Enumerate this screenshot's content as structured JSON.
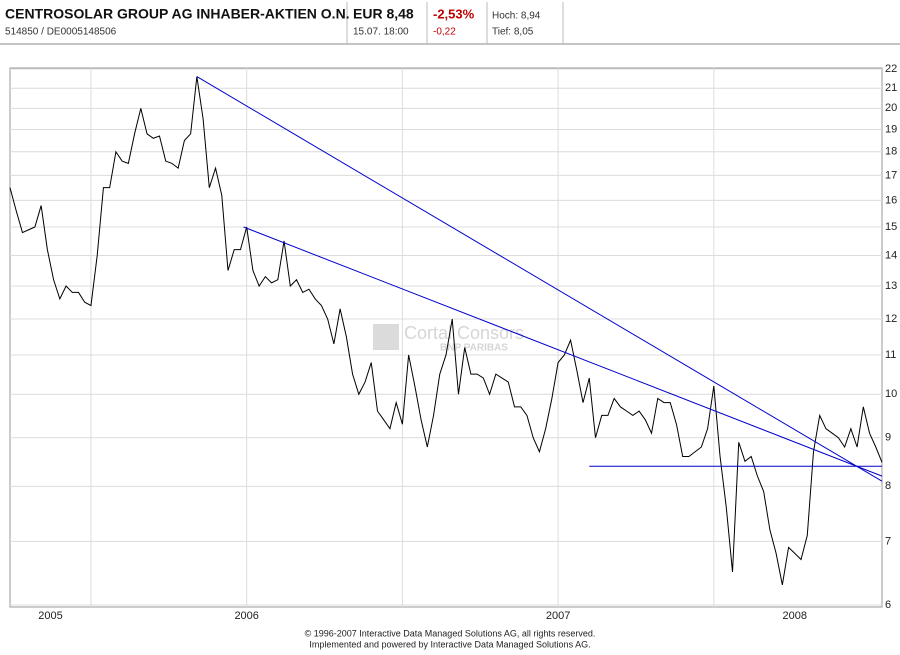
{
  "header": {
    "name": "CENTROSOLAR GROUP AG INHABER-AKTIEN O.N.",
    "ids": "514850  /  DE0005148506",
    "price": "EUR 8,48",
    "time": "15.07. 18:00",
    "change_pct": "-2,53%",
    "change_abs": "-0,22",
    "high": "Hoch: 8,94",
    "low": "Tief: 8,05"
  },
  "watermark": [
    "Cortal Consors",
    "BNP PARIBAS"
  ],
  "footer": [
    "© 1996-2007 Interactive Data Managed Solutions AG, all rights reserved.",
    "Implemented and powered by Interactive Data Managed Solutions AG."
  ],
  "chart_data": {
    "type": "line",
    "log_y": true,
    "grid": true,
    "xlim": [
      2005.74,
      2008.54
    ],
    "ylim": [
      6,
      22
    ],
    "yticks": [
      6,
      7,
      8,
      9,
      10,
      11,
      12,
      13,
      14,
      15,
      16,
      17,
      18,
      19,
      20,
      21,
      22
    ],
    "xticks": [
      {
        "value": 2005.87,
        "label": "2005"
      },
      {
        "value": 2006.5,
        "label": "2006"
      },
      {
        "value": 2007.5,
        "label": "2007"
      },
      {
        "value": 2008.26,
        "label": "2008"
      }
    ],
    "x_gridlines": [
      2006,
      2006.5,
      2007,
      2007.5,
      2008
    ],
    "x": [
      2005.74,
      2005.76,
      2005.78,
      2005.8,
      2005.82,
      2005.84,
      2005.86,
      2005.88,
      2005.9,
      2005.92,
      2005.94,
      2005.96,
      2005.98,
      2006,
      2006.02,
      2006.04,
      2006.06,
      2006.08,
      2006.1,
      2006.12,
      2006.14,
      2006.16,
      2006.18,
      2006.2,
      2006.22,
      2006.24,
      2006.26,
      2006.28,
      2006.3,
      2006.32,
      2006.34,
      2006.36,
      2006.38,
      2006.4,
      2006.42,
      2006.44,
      2006.46,
      2006.48,
      2006.5,
      2006.52,
      2006.54,
      2006.56,
      2006.58,
      2006.6,
      2006.62,
      2006.64,
      2006.66,
      2006.68,
      2006.7,
      2006.72,
      2006.74,
      2006.76,
      2006.78,
      2006.8,
      2006.82,
      2006.84,
      2006.86,
      2006.88,
      2006.9,
      2006.92,
      2006.94,
      2006.96,
      2006.98,
      2007,
      2007.02,
      2007.04,
      2007.06,
      2007.08,
      2007.1,
      2007.12,
      2007.14,
      2007.16,
      2007.18,
      2007.2,
      2007.22,
      2007.24,
      2007.26,
      2007.28,
      2007.3,
      2007.32,
      2007.34,
      2007.36,
      2007.38,
      2007.4,
      2007.42,
      2007.44,
      2007.46,
      2007.48,
      2007.5,
      2007.52,
      2007.54,
      2007.56,
      2007.58,
      2007.6,
      2007.62,
      2007.64,
      2007.66,
      2007.68,
      2007.7,
      2007.72,
      2007.74,
      2007.76,
      2007.78,
      2007.8,
      2007.82,
      2007.84,
      2007.86,
      2007.88,
      2007.9,
      2007.92,
      2007.94,
      2007.96,
      2007.98,
      2008,
      2008.02,
      2008.04,
      2008.06,
      2008.08,
      2008.1,
      2008.12,
      2008.14,
      2008.16,
      2008.18,
      2008.2,
      2008.22,
      2008.24,
      2008.26,
      2008.28,
      2008.3,
      2008.32,
      2008.34,
      2008.36,
      2008.38,
      2008.4,
      2008.42,
      2008.44,
      2008.46,
      2008.48,
      2008.5,
      2008.52,
      2008.54
    ],
    "series": [
      {
        "color": "#000000",
        "values": [
          16.5,
          15.6,
          14.8,
          14.9,
          15.0,
          15.8,
          14.2,
          13.2,
          12.6,
          13.0,
          12.8,
          12.8,
          12.5,
          12.4,
          14.0,
          16.5,
          16.5,
          18.0,
          17.6,
          17.5,
          18.8,
          20.0,
          18.8,
          18.6,
          18.7,
          17.6,
          17.5,
          17.3,
          18.5,
          18.8,
          21.6,
          19.5,
          16.5,
          17.3,
          16.2,
          13.5,
          14.2,
          14.2,
          15.0,
          13.5,
          13.0,
          13.3,
          13.1,
          13.2,
          14.5,
          13.0,
          13.2,
          12.8,
          12.9,
          12.6,
          12.4,
          12.0,
          11.3,
          12.3,
          11.5,
          10.5,
          10.0,
          10.3,
          10.8,
          9.6,
          9.4,
          9.2,
          9.8,
          9.3,
          11.0,
          10.2,
          9.4,
          8.8,
          9.5,
          10.5,
          11.0,
          12.0,
          10.0,
          11.2,
          10.5,
          10.5,
          10.4,
          10.0,
          10.5,
          10.4,
          10.3,
          9.7,
          9.7,
          9.5,
          9.0,
          8.7,
          9.2,
          9.9,
          10.8,
          11.0,
          11.4,
          10.6,
          9.8,
          10.4,
          9.0,
          9.5,
          9.5,
          9.9,
          9.7,
          9.6,
          9.5,
          9.6,
          9.4,
          9.1,
          9.9,
          9.8,
          9.8,
          9.3,
          8.6,
          8.6,
          8.7,
          8.8,
          9.2,
          10.2,
          8.6,
          7.6,
          6.5,
          8.9,
          8.5,
          8.6,
          8.2,
          7.9,
          7.2,
          6.8,
          6.3,
          6.9,
          6.8,
          6.7,
          7.1,
          8.7,
          9.5,
          9.2,
          9.1,
          9.0,
          8.8,
          9.2,
          8.8,
          9.7,
          9.1,
          8.8,
          8.48
        ]
      }
    ],
    "trendlines": [
      {
        "color": "#0000cc",
        "x": [
          2006.34,
          2008.54
        ],
        "y": [
          21.6,
          8.1
        ]
      },
      {
        "color": "#0000cc",
        "x": [
          2006.49,
          2008.54
        ],
        "y": [
          15.0,
          8.2
        ]
      },
      {
        "color": "#0000cc",
        "x": [
          2007.6,
          2008.54
        ],
        "y": [
          8.4,
          8.4
        ]
      }
    ]
  }
}
